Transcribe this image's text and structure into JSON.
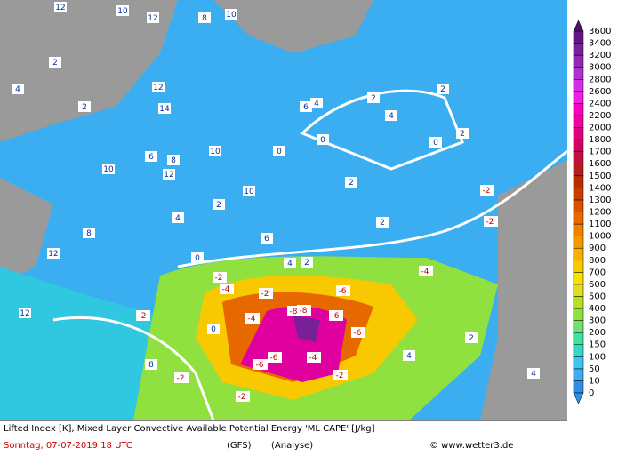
{
  "footer": {
    "title": "Lifted Index [K], Mixed Layer Convective Available Potential Energy 'ML CAPE' [J/kg]",
    "date": "Sonntag, 07-07-2019  18 UTC",
    "model": "(GFS)",
    "run": "(Analyse)",
    "copyright": "© www.wetter3.de"
  },
  "colorbar": {
    "levels": [
      0,
      10,
      50,
      100,
      150,
      200,
      300,
      400,
      500,
      600,
      700,
      800,
      900,
      1000,
      1100,
      1200,
      1300,
      1400,
      1500,
      1600,
      1700,
      1800,
      2000,
      2200,
      2400,
      2600,
      2800,
      3000,
      3200,
      3400,
      3600
    ],
    "colors": [
      "#2f8fe8",
      "#3aaef0",
      "#3ec6ec",
      "#30d8c8",
      "#40e0a0",
      "#70e070",
      "#90e040",
      "#b8e020",
      "#e0e020",
      "#f8e000",
      "#f8c800",
      "#f8b000",
      "#f89800",
      "#f08000",
      "#e86800",
      "#d85000",
      "#c84000",
      "#b83000",
      "#b02020",
      "#c01040",
      "#d00060",
      "#e00080",
      "#f000a0",
      "#f800c0",
      "#f020e0",
      "#d030e8",
      "#b030d0",
      "#9028b0",
      "#782098",
      "#601880",
      "#501070"
    ]
  },
  "contour_labels": [
    12,
    10,
    12,
    8,
    10,
    2,
    4,
    2,
    12,
    14,
    10,
    6,
    8,
    12,
    10,
    4,
    2,
    0,
    0,
    2,
    4,
    2,
    0,
    2,
    6,
    4,
    2,
    12,
    8,
    10,
    4,
    6,
    2,
    0,
    -2,
    -2,
    -2,
    -4,
    -2,
    -4,
    -2,
    -6,
    -4,
    -6,
    -8,
    -6,
    -6,
    -8,
    -4,
    -2,
    -6,
    -2,
    -2,
    0,
    2,
    4,
    2,
    4,
    12,
    8
  ]
}
